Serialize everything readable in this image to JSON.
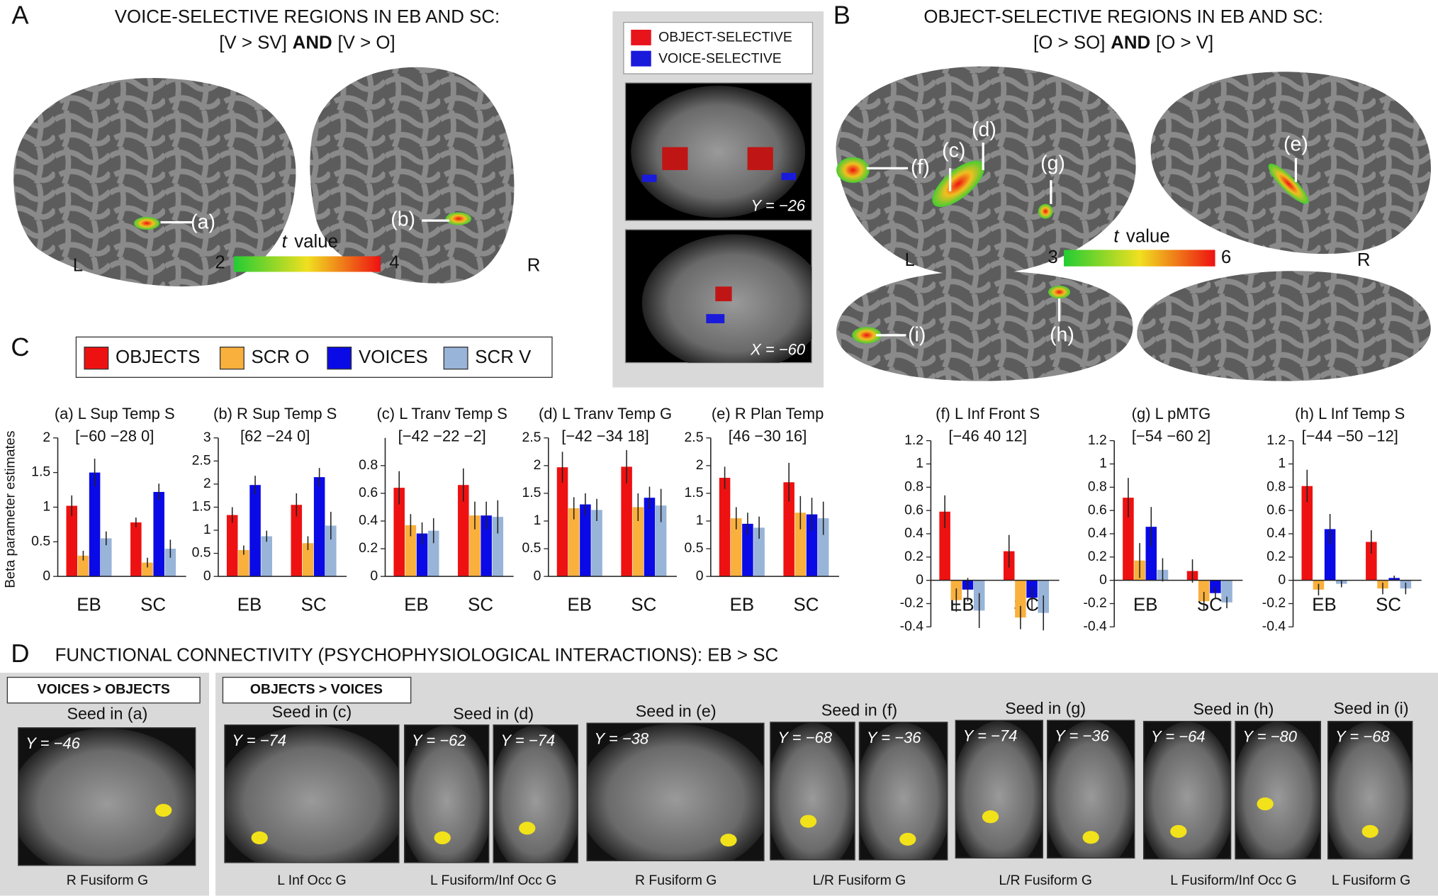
{
  "panel_a": {
    "letter": "A",
    "title": "VOICE-SELECTIVE REGIONS IN EB AND SC:",
    "contrast": [
      "[V > SV]",
      "AND",
      "[V > O]"
    ],
    "labels": [
      "(a)",
      "(b)"
    ],
    "hemispheres": [
      "L",
      "R"
    ],
    "scale_label": [
      "t",
      "value"
    ],
    "scale_min": 2,
    "scale_max": 4
  },
  "panel_mid": {
    "legend": [
      {
        "name": "OBJECT-SELECTIVE",
        "color": "#e8141c"
      },
      {
        "name": "VOICE-SELECTIVE",
        "color": "#1a1adb"
      }
    ],
    "slices": [
      "Y = −26",
      "X = −60"
    ]
  },
  "panel_b": {
    "letter": "B",
    "title": "OBJECT-SELECTIVE REGIONS IN EB AND SC:",
    "contrast": [
      "[O > SO]",
      "AND",
      "[O > V]"
    ],
    "labels": [
      "(c)",
      "(d)",
      "(e)",
      "(f)",
      "(g)",
      "(h)",
      "(i)"
    ],
    "hemispheres": [
      "L",
      "R"
    ],
    "scale_label": [
      "t",
      "value"
    ],
    "scale_min": 3,
    "scale_max": 6
  },
  "panel_c": {
    "letter": "C",
    "legend": [
      {
        "name": "OBJECTS",
        "color": "#ee1111"
      },
      {
        "name": "SCR O",
        "color": "#f9b03c"
      },
      {
        "name": "VOICES",
        "color": "#0a0ae6"
      },
      {
        "name": "SCR V",
        "color": "#98b4d8"
      }
    ]
  },
  "chart_data": [
    {
      "type": "bar",
      "title": "(a) L Sup Temp S",
      "coordinates": "[−60 −28 0]",
      "y_label": "Beta parameter estimates",
      "categories": [
        "EB",
        "SC"
      ],
      "series": [
        {
          "values": [
            1.02,
            0.78
          ],
          "errors": [
            0.15,
            0.07
          ]
        },
        {
          "values": [
            0.3,
            0.2
          ],
          "errors": [
            0.07,
            0.07
          ]
        },
        {
          "values": [
            1.5,
            1.22
          ],
          "errors": [
            0.2,
            0.12
          ]
        },
        {
          "values": [
            0.55,
            0.4
          ],
          "errors": [
            0.1,
            0.13
          ]
        }
      ],
      "ylim": [
        0,
        2
      ],
      "yticks": [
        0,
        0.5,
        1,
        1.5,
        2
      ]
    },
    {
      "type": "bar",
      "title": "(b) R Sup Temp S",
      "coordinates": "[62 −24 0]",
      "categories": [
        "EB",
        "SC"
      ],
      "series": [
        {
          "values": [
            1.33,
            1.55
          ],
          "errors": [
            0.17,
            0.25
          ]
        },
        {
          "values": [
            0.57,
            0.72
          ],
          "errors": [
            0.1,
            0.15
          ]
        },
        {
          "values": [
            1.98,
            2.15
          ],
          "errors": [
            0.2,
            0.2
          ]
        },
        {
          "values": [
            0.87,
            1.1
          ],
          "errors": [
            0.12,
            0.3
          ]
        }
      ],
      "ylim": [
        0,
        3
      ],
      "yticks": [
        0,
        0.5,
        1,
        1.5,
        2,
        2.5,
        3
      ]
    },
    {
      "type": "bar",
      "title": "(c) L Tranv Temp S",
      "coordinates": "[−42 −22 −2]",
      "categories": [
        "EB",
        "SC"
      ],
      "series": [
        {
          "values": [
            0.64,
            0.66
          ],
          "errors": [
            0.12,
            0.12
          ]
        },
        {
          "values": [
            0.37,
            0.44
          ],
          "errors": [
            0.08,
            0.1
          ]
        },
        {
          "values": [
            0.31,
            0.44
          ],
          "errors": [
            0.08,
            0.1
          ]
        },
        {
          "values": [
            0.33,
            0.43
          ],
          "errors": [
            0.09,
            0.12
          ]
        }
      ],
      "ylim": [
        0,
        1
      ],
      "yticks": [
        0,
        0.2,
        0.4,
        0.6,
        0.8
      ]
    },
    {
      "type": "bar",
      "title": "(d) L Tranv Temp G",
      "coordinates": "[−42 −34 18]",
      "categories": [
        "EB",
        "SC"
      ],
      "series": [
        {
          "values": [
            1.97,
            1.98
          ],
          "errors": [
            0.28,
            0.3
          ]
        },
        {
          "values": [
            1.23,
            1.25
          ],
          "errors": [
            0.2,
            0.25
          ]
        },
        {
          "values": [
            1.3,
            1.42
          ],
          "errors": [
            0.2,
            0.2
          ]
        },
        {
          "values": [
            1.2,
            1.28
          ],
          "errors": [
            0.2,
            0.3
          ]
        }
      ],
      "ylim": [
        0,
        2.5
      ],
      "yticks": [
        0,
        0.5,
        1,
        1.5,
        2,
        2.5
      ]
    },
    {
      "type": "bar",
      "title": "(e) R Plan Temp",
      "coordinates": "[46 −30 16]",
      "categories": [
        "EB",
        "SC"
      ],
      "series": [
        {
          "values": [
            1.78,
            1.7
          ],
          "errors": [
            0.2,
            0.35
          ]
        },
        {
          "values": [
            1.05,
            1.15
          ],
          "errors": [
            0.2,
            0.3
          ]
        },
        {
          "values": [
            0.95,
            1.12
          ],
          "errors": [
            0.2,
            0.3
          ]
        },
        {
          "values": [
            0.88,
            1.05
          ],
          "errors": [
            0.2,
            0.3
          ]
        }
      ],
      "ylim": [
        0,
        2.5
      ],
      "yticks": [
        0,
        0.5,
        1,
        1.5,
        2,
        2.5
      ]
    },
    {
      "type": "bar",
      "title": "(f) L Inf Front S",
      "coordinates": "[−46 40 12]",
      "categories": [
        "EB",
        "SC"
      ],
      "series": [
        {
          "values": [
            0.59,
            0.25
          ],
          "errors": [
            0.14,
            0.14
          ]
        },
        {
          "values": [
            -0.17,
            -0.32
          ],
          "errors": [
            0.1,
            0.1
          ]
        },
        {
          "values": [
            -0.08,
            -0.15
          ],
          "errors": [
            0.1,
            0.1
          ]
        },
        {
          "values": [
            -0.26,
            -0.28
          ],
          "errors": [
            0.15,
            0.15
          ]
        }
      ],
      "ylim": [
        -0.4,
        1.2
      ],
      "yticks": [
        -0.4,
        -0.2,
        0,
        0.2,
        0.4,
        0.6,
        0.8,
        1,
        1.2
      ]
    },
    {
      "type": "bar",
      "title": "(g) L pMTG",
      "coordinates": "[−54 −60 2]",
      "categories": [
        "EB",
        "SC"
      ],
      "series": [
        {
          "values": [
            0.71,
            0.08
          ],
          "errors": [
            0.17,
            0.1
          ]
        },
        {
          "values": [
            0.17,
            -0.18
          ],
          "errors": [
            0.15,
            0.08
          ]
        },
        {
          "values": [
            0.46,
            -0.11
          ],
          "errors": [
            0.17,
            0.05
          ]
        },
        {
          "values": [
            0.09,
            -0.19
          ],
          "errors": [
            0.1,
            0.05
          ]
        }
      ],
      "ylim": [
        -0.4,
        1.2
      ],
      "yticks": [
        -0.4,
        -0.2,
        0,
        0.2,
        0.4,
        0.6,
        0.8,
        1,
        1.2
      ]
    },
    {
      "type": "bar",
      "title": "(h) L Inf Temp S",
      "coordinates": "[−44 −50 −12]",
      "categories": [
        "EB",
        "SC"
      ],
      "series": [
        {
          "values": [
            0.81,
            0.33
          ],
          "errors": [
            0.14,
            0.1
          ]
        },
        {
          "values": [
            -0.08,
            -0.07
          ],
          "errors": [
            0.05,
            0.05
          ]
        },
        {
          "values": [
            0.44,
            0.02
          ],
          "errors": [
            0.13,
            0.02
          ]
        },
        {
          "values": [
            -0.03,
            -0.07
          ],
          "errors": [
            0.03,
            0.05
          ]
        }
      ],
      "ylim": [
        -0.4,
        1.2
      ],
      "yticks": [
        -0.4,
        -0.2,
        0,
        0.2,
        0.4,
        0.6,
        0.8,
        1,
        1.2
      ]
    }
  ],
  "panel_d": {
    "letter": "D",
    "title": "FUNCTIONAL CONNECTIVITY (PSYCHOPHYSIOLOGICAL INTERACTIONS): EB > SC",
    "groups": [
      "VOICES > OBJECTS",
      "OBJECTS > VOICES"
    ],
    "seeds": [
      {
        "seed": "Seed in (a)",
        "slices": [
          "Y = −46"
        ],
        "region": "R Fusiform G"
      },
      {
        "seed": "Seed in (c)",
        "slices": [
          "Y = −74"
        ],
        "region": "L Inf Occ G"
      },
      {
        "seed": "Seed in (d)",
        "slices": [
          "Y = −62",
          "Y = −74"
        ],
        "region": "L Fusiform/Inf Occ G"
      },
      {
        "seed": "Seed in (e)",
        "slices": [
          "Y = −38"
        ],
        "region": "R Fusiform G"
      },
      {
        "seed": "Seed in (f)",
        "slices": [
          "Y = −68",
          "Y = −36"
        ],
        "region": "L/R Fusiform G"
      },
      {
        "seed": "Seed in (g)",
        "slices": [
          "Y = −74",
          "Y = −36"
        ],
        "region": "L/R Fusiform G"
      },
      {
        "seed": "Seed in (h)",
        "slices": [
          "Y = −64",
          "Y = −80"
        ],
        "region": "L Fusiform/Inf Occ G"
      },
      {
        "seed": "Seed in (i)",
        "slices": [
          "Y = −68"
        ],
        "region": "L Fusiform G"
      }
    ]
  }
}
